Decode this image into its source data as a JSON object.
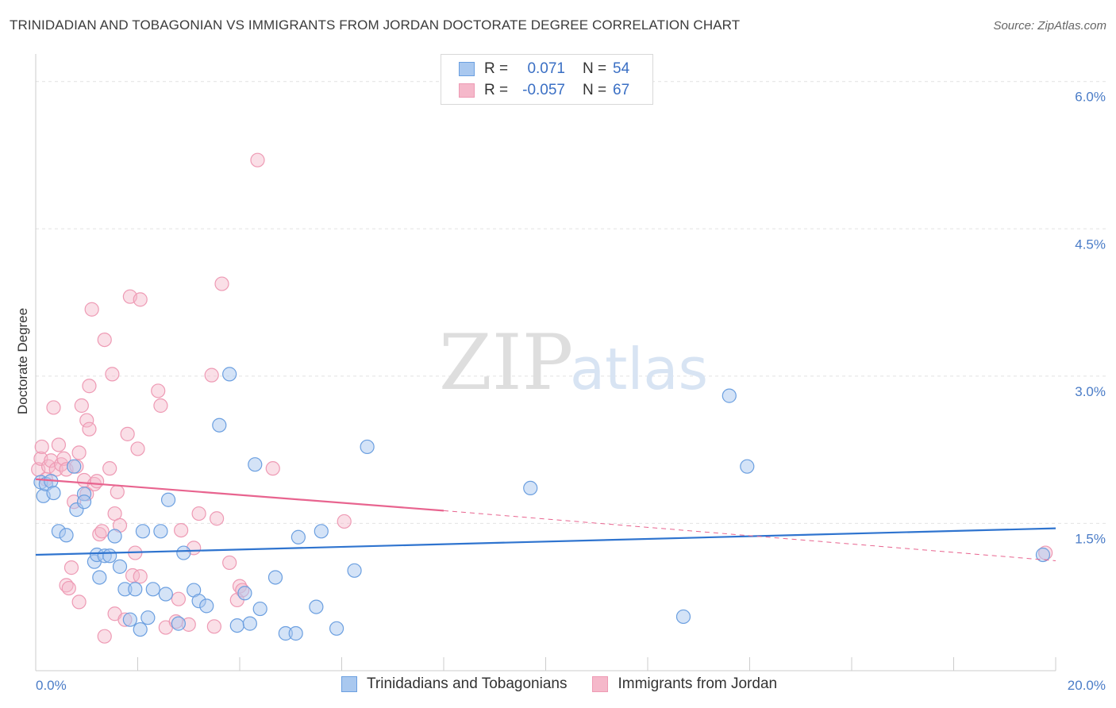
{
  "header": {
    "title": "TRINIDADIAN AND TOBAGONIAN VS IMMIGRANTS FROM JORDAN DOCTORATE DEGREE CORRELATION CHART",
    "source": "Source: ZipAtlas.com"
  },
  "watermark": {
    "zip": "ZIP",
    "atlas": "atlas"
  },
  "legend": {
    "rows": [
      {
        "r_label": "R =",
        "r_value": "0.071",
        "n_label": "N =",
        "n_value": "54"
      },
      {
        "r_label": "R =",
        "r_value": "-0.057",
        "n_label": "N =",
        "n_value": "67"
      }
    ]
  },
  "colors": {
    "blue_fill": "#a9c8ef",
    "blue_stroke": "#6b9fe0",
    "blue_line": "#2f74cf",
    "pink_fill": "#f5b8ca",
    "pink_stroke": "#ee9ab4",
    "pink_line": "#e8648f",
    "grid": "#e2e2e2",
    "tick": "#4a7cc7"
  },
  "chart_data": {
    "type": "scatter",
    "title": "TRINIDADIAN AND TOBAGONIAN VS IMMIGRANTS FROM JORDAN DOCTORATE DEGREE CORRELATION CHART",
    "xlabel": "",
    "ylabel": "Doctorate Degree",
    "xlim": [
      0,
      20
    ],
    "ylim": [
      0,
      6.2
    ],
    "x_tick_labels": [
      "0.0%",
      "20.0%"
    ],
    "y_ticks": [
      1.5,
      3.0,
      4.5,
      6.0
    ],
    "y_tick_labels": [
      "1.5%",
      "3.0%",
      "4.5%",
      "6.0%"
    ],
    "grid": true,
    "legend_placement": "bottom-center",
    "series": [
      {
        "name": "Trinidadians and Tobagonians",
        "color": "#6b9fe0",
        "trend": {
          "x": [
            0,
            20
          ],
          "y": [
            1.18,
            1.45
          ]
        },
        "points": [
          [
            0.1,
            1.92
          ],
          [
            0.15,
            1.78
          ],
          [
            0.2,
            1.9
          ],
          [
            0.3,
            1.93
          ],
          [
            0.35,
            1.81
          ],
          [
            0.45,
            1.42
          ],
          [
            0.6,
            1.38
          ],
          [
            0.75,
            2.08
          ],
          [
            0.8,
            1.64
          ],
          [
            0.95,
            1.8
          ],
          [
            0.95,
            1.72
          ],
          [
            1.15,
            1.11
          ],
          [
            1.2,
            1.18
          ],
          [
            1.25,
            0.95
          ],
          [
            1.35,
            1.17
          ],
          [
            1.45,
            1.17
          ],
          [
            1.55,
            1.37
          ],
          [
            1.65,
            1.06
          ],
          [
            1.75,
            0.83
          ],
          [
            1.85,
            0.52
          ],
          [
            1.95,
            0.83
          ],
          [
            2.05,
            0.42
          ],
          [
            2.1,
            1.42
          ],
          [
            2.2,
            0.54
          ],
          [
            2.3,
            0.83
          ],
          [
            2.45,
            1.42
          ],
          [
            2.55,
            0.78
          ],
          [
            2.6,
            1.74
          ],
          [
            2.8,
            0.48
          ],
          [
            2.9,
            1.2
          ],
          [
            3.1,
            0.82
          ],
          [
            3.2,
            0.71
          ],
          [
            3.35,
            0.66
          ],
          [
            3.6,
            2.5
          ],
          [
            3.8,
            3.02
          ],
          [
            3.95,
            0.46
          ],
          [
            4.1,
            0.79
          ],
          [
            4.2,
            0.48
          ],
          [
            4.3,
            2.1
          ],
          [
            4.4,
            0.63
          ],
          [
            4.7,
            0.95
          ],
          [
            4.9,
            0.38
          ],
          [
            5.1,
            0.38
          ],
          [
            5.15,
            1.36
          ],
          [
            5.5,
            0.65
          ],
          [
            5.6,
            1.42
          ],
          [
            5.9,
            0.43
          ],
          [
            6.25,
            1.02
          ],
          [
            6.5,
            2.28
          ],
          [
            9.7,
            1.86
          ],
          [
            12.7,
            0.55
          ],
          [
            13.6,
            2.8
          ],
          [
            13.95,
            2.08
          ],
          [
            19.75,
            1.18
          ]
        ]
      },
      {
        "name": "Immigrants from Jordan",
        "color": "#ee9ab4",
        "trend": {
          "x": [
            0,
            8
          ],
          "y": [
            1.95,
            1.63
          ]
        },
        "trend_dashed": {
          "x": [
            8,
            20
          ],
          "y": [
            1.63,
            1.12
          ]
        },
        "points": [
          [
            0.05,
            2.05
          ],
          [
            0.1,
            2.16
          ],
          [
            0.12,
            2.28
          ],
          [
            0.2,
            1.95
          ],
          [
            0.25,
            2.08
          ],
          [
            0.3,
            2.14
          ],
          [
            0.35,
            2.68
          ],
          [
            0.4,
            2.05
          ],
          [
            0.45,
            2.3
          ],
          [
            0.5,
            2.1
          ],
          [
            0.55,
            2.16
          ],
          [
            0.6,
            2.05
          ],
          [
            0.6,
            0.87
          ],
          [
            0.65,
            0.84
          ],
          [
            0.7,
            1.05
          ],
          [
            0.75,
            1.72
          ],
          [
            0.8,
            2.08
          ],
          [
            0.85,
            2.22
          ],
          [
            0.85,
            0.7
          ],
          [
            0.9,
            2.7
          ],
          [
            0.95,
            1.94
          ],
          [
            1.0,
            2.55
          ],
          [
            1.0,
            1.8
          ],
          [
            1.05,
            2.46
          ],
          [
            1.05,
            2.9
          ],
          [
            1.1,
            3.68
          ],
          [
            1.15,
            1.9
          ],
          [
            1.2,
            1.93
          ],
          [
            1.25,
            1.39
          ],
          [
            1.3,
            1.42
          ],
          [
            1.35,
            3.37
          ],
          [
            1.35,
            0.35
          ],
          [
            1.45,
            2.06
          ],
          [
            1.5,
            3.02
          ],
          [
            1.55,
            1.6
          ],
          [
            1.55,
            0.58
          ],
          [
            1.6,
            1.82
          ],
          [
            1.65,
            1.48
          ],
          [
            1.75,
            0.52
          ],
          [
            1.8,
            2.41
          ],
          [
            1.85,
            3.81
          ],
          [
            1.9,
            0.97
          ],
          [
            1.95,
            1.2
          ],
          [
            2.0,
            2.26
          ],
          [
            2.05,
            0.96
          ],
          [
            2.05,
            3.78
          ],
          [
            2.4,
            2.85
          ],
          [
            2.45,
            2.7
          ],
          [
            2.55,
            0.44
          ],
          [
            2.75,
            0.5
          ],
          [
            2.8,
            0.73
          ],
          [
            2.85,
            1.43
          ],
          [
            3.0,
            0.47
          ],
          [
            3.1,
            1.25
          ],
          [
            3.2,
            1.6
          ],
          [
            3.45,
            3.01
          ],
          [
            3.5,
            0.45
          ],
          [
            3.55,
            1.55
          ],
          [
            3.65,
            3.94
          ],
          [
            3.8,
            1.1
          ],
          [
            3.95,
            0.72
          ],
          [
            4.0,
            0.86
          ],
          [
            4.05,
            0.82
          ],
          [
            4.35,
            5.2
          ],
          [
            4.65,
            2.06
          ],
          [
            6.05,
            1.52
          ],
          [
            19.8,
            1.2
          ]
        ]
      }
    ]
  }
}
